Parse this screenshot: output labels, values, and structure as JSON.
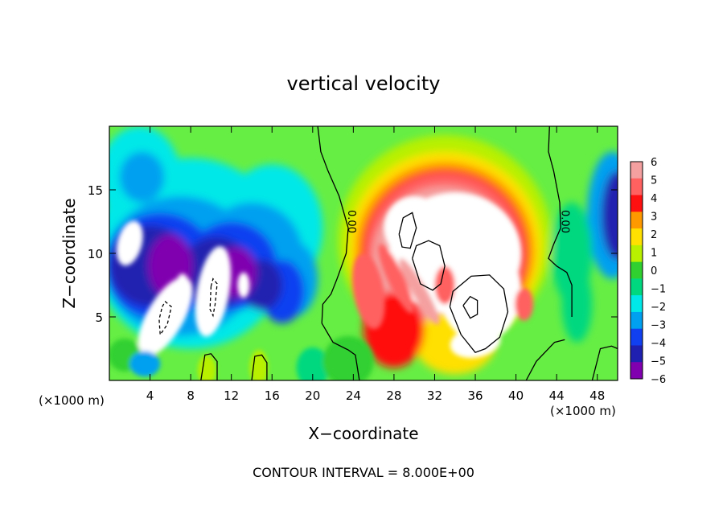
{
  "chart_data": {
    "type": "heatmap",
    "title": "vertical velocity",
    "xlabel": "X−coordinate",
    "ylabel": "Z−coordinate",
    "x_unit_left": "(×1000 m)",
    "x_unit_right": "(×1000 m)",
    "footer": "CONTOUR INTERVAL = 8.000E+00",
    "xlim": [
      0,
      50
    ],
    "ylim": [
      0,
      20
    ],
    "x_ticks": [
      4,
      8,
      12,
      16,
      20,
      24,
      28,
      32,
      36,
      40,
      44,
      48
    ],
    "x_tick_labels": [
      "4",
      "8",
      "12",
      "16",
      "20",
      "24",
      "28",
      "32",
      "36",
      "40",
      "44",
      "48"
    ],
    "y_ticks": [
      5,
      10,
      15
    ],
    "y_tick_labels": [
      "5",
      "10",
      "15"
    ],
    "contour_labels": [
      {
        "text": "0.00",
        "x": 23.5,
        "y": 12.5
      },
      {
        "text": "0.00",
        "x": 44.5,
        "y": 12.5
      }
    ],
    "colorbar": {
      "values": [
        6,
        5,
        4,
        3,
        2,
        1,
        0,
        -1,
        -2,
        -3,
        -4,
        -5,
        -6
      ],
      "labels": [
        "6",
        "5",
        "4",
        "3",
        "2",
        "1",
        "0",
        "−1",
        "−2",
        "−3",
        "−4",
        "−5",
        "−6"
      ],
      "colors": [
        "#f5a0a0",
        "#ff6060",
        "#ff1010",
        "#ff9900",
        "#ffe000",
        "#b8f000",
        "#30d030",
        "#00d880",
        "#00e8e8",
        "#00a0f0",
        "#1040f0",
        "#2020b0",
        "#8000b0"
      ]
    },
    "saturated_high_color": "#ffffff",
    "saturated_low_color": "#ffffff",
    "background_color": "#66ee44",
    "contour_color": "#000000"
  }
}
